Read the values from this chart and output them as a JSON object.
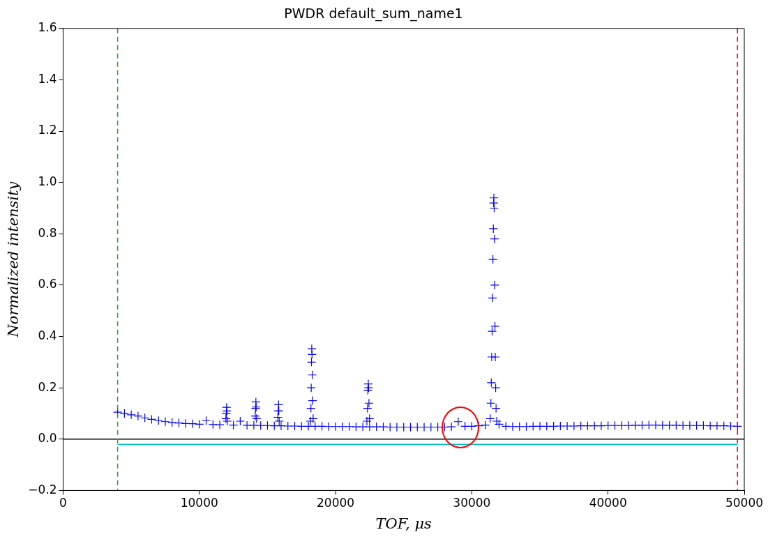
{
  "chart_data": {
    "type": "scatter",
    "title": "PWDR default_sum_name1",
    "xlabel": "TOF, μs",
    "ylabel": "Normalized intensity",
    "xlim": [
      0,
      50000
    ],
    "xticks": [
      0,
      10000,
      20000,
      30000,
      40000,
      50000
    ],
    "ylim": [
      -0.2,
      1.6
    ],
    "yticks": [
      {
        "value": -0.2,
        "label": "−0.2"
      },
      {
        "value": 0,
        "label": "0.0"
      },
      0.2,
      0.4,
      0.6,
      0.8,
      {
        "value": 1,
        "label": "1.0"
      },
      1.2,
      1.4,
      1.6
    ],
    "grid": false,
    "legend": false,
    "ref_lines": [
      {
        "axis": "y",
        "value": 0,
        "color": "#000000",
        "line_style": "solid"
      },
      {
        "axis": "x",
        "value": 4000,
        "color": "#2ca02c",
        "line_style": "dashed"
      },
      {
        "axis": "x",
        "value": 49500,
        "color": "#ff0000",
        "line_style": "dashed"
      }
    ],
    "series": [
      {
        "color": "#0000ff",
        "marker": "cross",
        "x": [
          4000,
          4500,
          5000,
          5500,
          6000,
          6500,
          7000,
          7500,
          8000,
          8500,
          9000,
          9500,
          10000,
          10500,
          11000,
          11500,
          11950,
          11980,
          12000,
          12020,
          12050,
          12500,
          13000,
          13500,
          14000,
          14100,
          14130,
          14150,
          14170,
          14200,
          14500,
          15000,
          15500,
          15760,
          15790,
          15810,
          15830,
          15860,
          16000,
          16500,
          17000,
          17500,
          18000,
          18150,
          18190,
          18210,
          18230,
          18250,
          18270,
          18290,
          18310,
          18350,
          18500,
          19000,
          19500,
          20000,
          20500,
          21000,
          21500,
          22000,
          22300,
          22340,
          22370,
          22400,
          22420,
          22450,
          22490,
          22500,
          23000,
          23500,
          24000,
          24500,
          25000,
          25500,
          26000,
          26500,
          27000,
          27500,
          28000,
          28500,
          29000,
          29500,
          30000,
          30500,
          31000,
          31350,
          31400,
          31430,
          31460,
          31490,
          31520,
          31550,
          31580,
          31600,
          31620,
          31640,
          31660,
          31680,
          31700,
          31720,
          31750,
          31780,
          31830,
          32000,
          32500,
          33000,
          33500,
          34000,
          34500,
          35000,
          35500,
          36000,
          36500,
          37000,
          37500,
          38000,
          38500,
          39000,
          39500,
          40000,
          40500,
          41000,
          41500,
          42000,
          42500,
          43000,
          43500,
          44000,
          44500,
          45000,
          45500,
          46000,
          46500,
          47000,
          47500,
          48000,
          48500,
          49000,
          49500
        ],
        "values": [
          0.105,
          0.1,
          0.095,
          0.09,
          0.083,
          0.077,
          0.072,
          0.068,
          0.065,
          0.063,
          0.061,
          0.06,
          0.058,
          0.072,
          0.057,
          0.056,
          0.08,
          0.1,
          0.124,
          0.11,
          0.07,
          0.055,
          0.07,
          0.054,
          0.054,
          0.09,
          0.12,
          0.145,
          0.125,
          0.08,
          0.053,
          0.053,
          0.052,
          0.085,
          0.11,
          0.134,
          0.11,
          0.07,
          0.052,
          0.051,
          0.051,
          0.05,
          0.05,
          0.07,
          0.12,
          0.2,
          0.3,
          0.352,
          0.33,
          0.25,
          0.15,
          0.08,
          0.05,
          0.05,
          0.049,
          0.049,
          0.049,
          0.049,
          0.048,
          0.048,
          0.07,
          0.12,
          0.19,
          0.215,
          0.2,
          0.14,
          0.08,
          0.048,
          0.048,
          0.048,
          0.047,
          0.047,
          0.047,
          0.047,
          0.047,
          0.047,
          0.047,
          0.047,
          0.047,
          0.048,
          0.068,
          0.05,
          0.05,
          0.052,
          0.055,
          0.08,
          0.14,
          0.22,
          0.32,
          0.42,
          0.55,
          0.7,
          0.82,
          0.92,
          0.94,
          0.9,
          0.78,
          0.6,
          0.44,
          0.32,
          0.2,
          0.12,
          0.07,
          0.058,
          0.05,
          0.049,
          0.049,
          0.049,
          0.05,
          0.05,
          0.05,
          0.05,
          0.051,
          0.051,
          0.051,
          0.052,
          0.052,
          0.052,
          0.052,
          0.053,
          0.053,
          0.053,
          0.053,
          0.054,
          0.054,
          0.055,
          0.055,
          0.054,
          0.054,
          0.054,
          0.053,
          0.053,
          0.053,
          0.053,
          0.052,
          0.052,
          0.052,
          0.051,
          0.05
        ]
      },
      {
        "type": "line",
        "color": "#00bfbf",
        "x": [
          4000,
          49500
        ],
        "values": [
          -0.02,
          -0.02
        ]
      }
    ]
  }
}
